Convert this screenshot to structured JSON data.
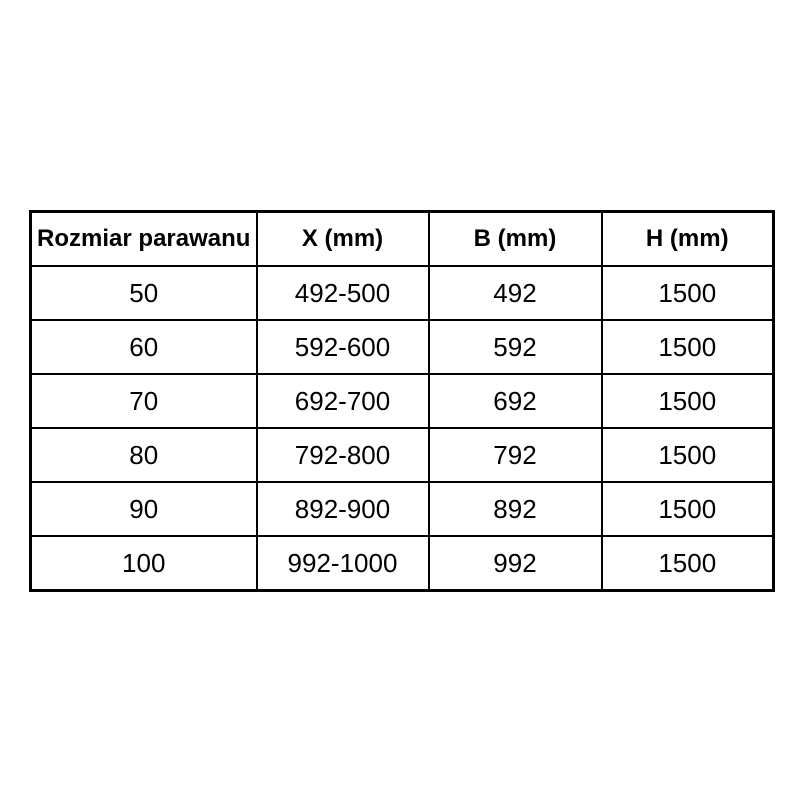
{
  "chart_data": {
    "type": "table",
    "title": "",
    "columns": [
      "Rozmiar parawanu",
      "X (mm)",
      "B (mm)",
      "H (mm)"
    ],
    "rows": [
      [
        "50",
        "492-500",
        "492",
        "1500"
      ],
      [
        "60",
        "592-600",
        "592",
        "1500"
      ],
      [
        "70",
        "692-700",
        "692",
        "1500"
      ],
      [
        "80",
        "792-800",
        "792",
        "1500"
      ],
      [
        "90",
        "892-900",
        "892",
        "1500"
      ],
      [
        "100",
        "992-1000",
        "992",
        "1500"
      ]
    ],
    "colors": {
      "border": "#000000",
      "text": "#000000",
      "background": "#ffffff"
    }
  }
}
